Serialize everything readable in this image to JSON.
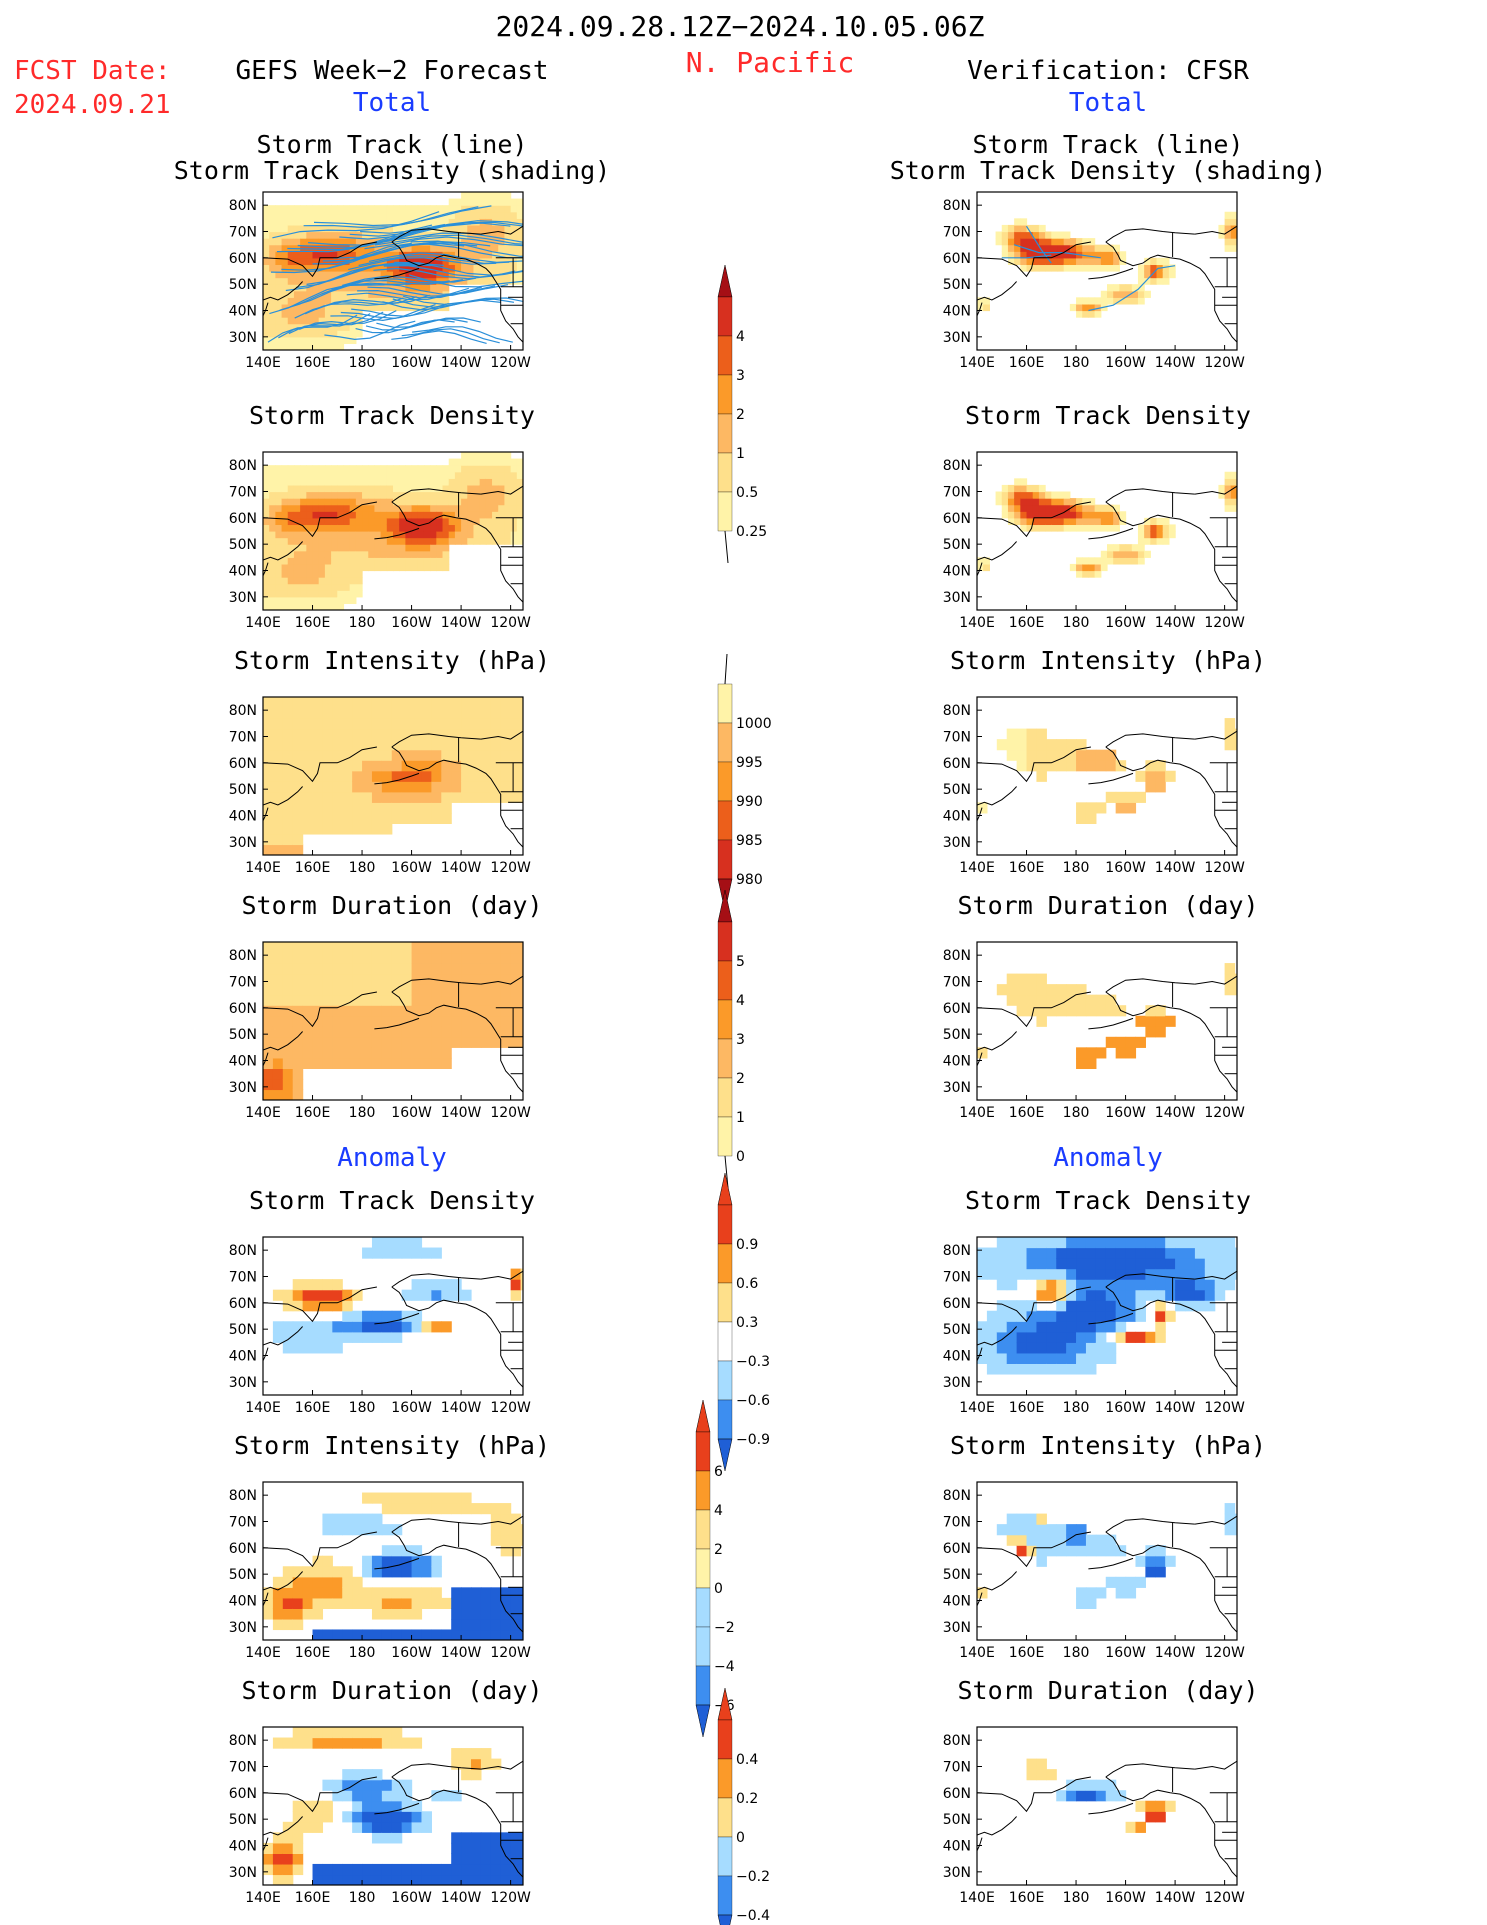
{
  "header": {
    "period": "2024.09.28.12Z−2024.10.05.06Z",
    "region": "N. Pacific",
    "fcst_label": "FCST Date:",
    "fcst_date": "2024.09.21",
    "left_title": "GEFS Week−2 Forecast",
    "right_title": "Verification: CFSR",
    "total_label": "Total",
    "anomaly_label": "Anomaly"
  },
  "axes": {
    "x_ticks": [
      "140E",
      "160E",
      "180",
      "160W",
      "140W",
      "120W"
    ],
    "y_ticks": [
      "80N",
      "70N",
      "60N",
      "50N",
      "40N",
      "30N"
    ]
  },
  "panel_titles": {
    "track_line_1": "Storm Track (line)",
    "track_line_2": "Storm Track Density (shading)",
    "density": "Storm Track Density",
    "intensity": "Storm Intensity (hPa)",
    "duration": "Storm Duration (day)"
  },
  "colorbars": {
    "density_total": [
      "4",
      "3",
      "2",
      "1",
      "0.5",
      "0.25"
    ],
    "intensity_total": [
      "1000",
      "995",
      "990",
      "985",
      "980"
    ],
    "duration_total": [
      "5",
      "4",
      "3",
      "2",
      "1",
      "0"
    ],
    "density_anom": [
      "0.9",
      "0.6",
      "0.3",
      "−0.3",
      "−0.6",
      "−0.9"
    ],
    "intensity_anom": [
      "6",
      "4",
      "2",
      "0",
      "−2",
      "−4",
      "−6"
    ],
    "duration_anom": [
      "0.4",
      "0.2",
      "0",
      "−0.2",
      "−0.4"
    ]
  },
  "colors": {
    "warm": [
      "#fff3a8",
      "#fee08b",
      "#fdb863",
      "#fb9a29",
      "#ec5f1b",
      "#d7301f",
      "#a50f15"
    ],
    "diverging": [
      "#1f5fd6",
      "#3d8ef0",
      "#a6dcff",
      "#ffffff",
      "#fee08b",
      "#fb9a29",
      "#e8401c"
    ],
    "track_line": "#2a8fd9"
  },
  "chart_data": [
    {
      "type": "heatmap",
      "panel": "GEFS Week-2 Forecast - Total - Storm Track (line) / Storm Track Density (shading)",
      "levels": [
        0.25,
        0.5,
        1,
        2,
        3,
        4
      ]
    },
    {
      "type": "heatmap",
      "panel": "GEFS Week-2 Forecast - Total - Storm Track Density",
      "levels": [
        0.25,
        0.5,
        1,
        2,
        3,
        4
      ]
    },
    {
      "type": "heatmap",
      "panel": "GEFS Week-2 Forecast - Total - Storm Intensity (hPa)",
      "levels": [
        980,
        985,
        990,
        995,
        1000
      ]
    },
    {
      "type": "heatmap",
      "panel": "GEFS Week-2 Forecast - Total - Storm Duration (day)",
      "levels": [
        0,
        1,
        2,
        3,
        4,
        5
      ]
    },
    {
      "type": "heatmap",
      "panel": "GEFS Week-2 Forecast - Anomaly - Storm Track Density",
      "levels": [
        -0.9,
        -0.6,
        -0.3,
        0.3,
        0.6,
        0.9
      ]
    },
    {
      "type": "heatmap",
      "panel": "GEFS Week-2 Forecast - Anomaly - Storm Intensity (hPa)",
      "levels": [
        -6,
        -4,
        -2,
        0,
        2,
        4,
        6
      ]
    },
    {
      "type": "heatmap",
      "panel": "GEFS Week-2 Forecast - Anomaly - Storm Duration (day)",
      "levels": [
        -0.4,
        -0.2,
        0,
        0.2,
        0.4
      ]
    },
    {
      "type": "heatmap",
      "panel": "Verification CFSR - Total - Storm Track (line) / Storm Track Density (shading)",
      "levels": [
        0.25,
        0.5,
        1,
        2,
        3,
        4
      ]
    },
    {
      "type": "heatmap",
      "panel": "Verification CFSR - Total - Storm Track Density",
      "levels": [
        0.25,
        0.5,
        1,
        2,
        3,
        4
      ]
    },
    {
      "type": "heatmap",
      "panel": "Verification CFSR - Total - Storm Intensity (hPa)",
      "levels": [
        980,
        985,
        990,
        995,
        1000
      ]
    },
    {
      "type": "heatmap",
      "panel": "Verification CFSR - Total - Storm Duration (day)",
      "levels": [
        0,
        1,
        2,
        3,
        4,
        5
      ]
    },
    {
      "type": "heatmap",
      "panel": "Verification CFSR - Anomaly - Storm Track Density",
      "levels": [
        -0.9,
        -0.6,
        -0.3,
        0.3,
        0.6,
        0.9
      ]
    },
    {
      "type": "heatmap",
      "panel": "Verification CFSR - Anomaly - Storm Intensity (hPa)",
      "levels": [
        -6,
        -4,
        -2,
        0,
        2,
        4,
        6
      ]
    },
    {
      "type": "heatmap",
      "panel": "Verification CFSR - Anomaly - Storm Duration (day)",
      "levels": [
        -0.4,
        -0.2,
        0,
        0.2,
        0.4
      ]
    }
  ]
}
